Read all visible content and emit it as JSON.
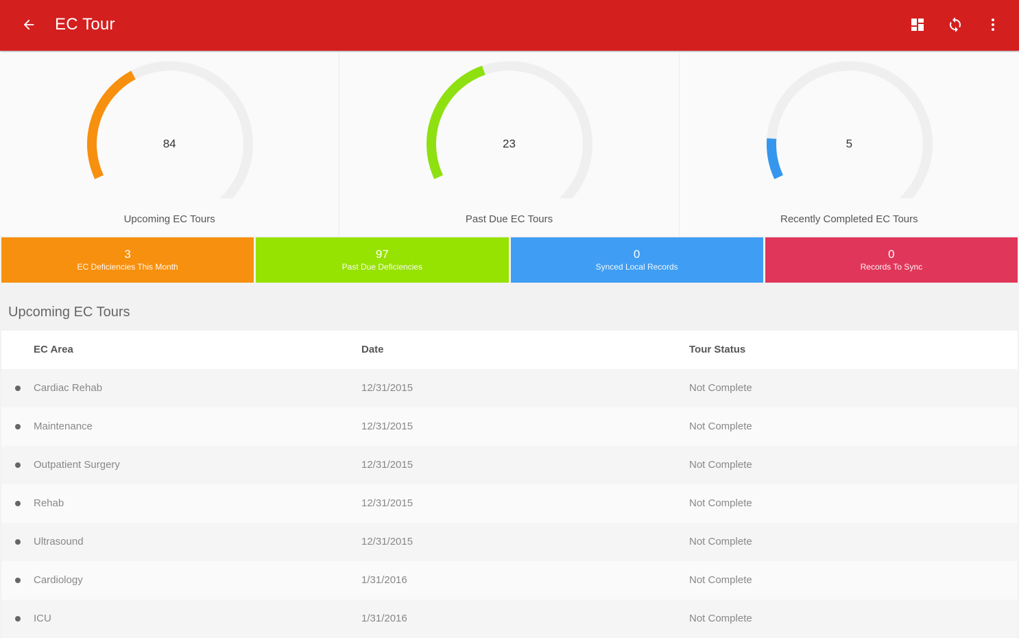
{
  "appbar": {
    "title": "EC Tour",
    "color": "#d41f1f",
    "icons": [
      "arrow-back-icon",
      "dashboard-grid-icon",
      "sync-icon",
      "more-vert-icon"
    ]
  },
  "gauges": [
    {
      "value": "84",
      "label": "Upcoming EC Tours",
      "color": "#f7900e",
      "fill_fraction": 0.3
    },
    {
      "value": "23",
      "label": "Past Due EC Tours",
      "color": "#8ee011",
      "fill_fraction": 0.33
    },
    {
      "value": "5",
      "label": "Recently Completed EC Tours",
      "color": "#3596ee",
      "fill_fraction": 0.1
    }
  ],
  "tiles": [
    {
      "num": "3",
      "caption": "EC Deficiencies This Month",
      "color": "#f7900e"
    },
    {
      "num": "97",
      "caption": "Past Due Deficiencies",
      "color": "#96e200"
    },
    {
      "num": "0",
      "caption": "Synced Local Records",
      "color": "#3f9df3"
    },
    {
      "num": "0",
      "caption": "Records To Sync",
      "color": "#e0365a"
    }
  ],
  "section": {
    "title": "Upcoming EC Tours"
  },
  "table": {
    "headers": [
      "EC Area",
      "Date",
      "Tour Status"
    ],
    "rows": [
      [
        "Cardiac Rehab",
        "12/31/2015",
        "Not Complete"
      ],
      [
        "Maintenance",
        "12/31/2015",
        "Not Complete"
      ],
      [
        "Outpatient Surgery",
        "12/31/2015",
        "Not Complete"
      ],
      [
        "Rehab",
        "12/31/2015",
        "Not Complete"
      ],
      [
        "Ultrasound",
        "12/31/2015",
        "Not Complete"
      ],
      [
        "Cardiology",
        "1/31/2016",
        "Not Complete"
      ],
      [
        "ICU",
        "1/31/2016",
        "Not Complete"
      ]
    ]
  }
}
